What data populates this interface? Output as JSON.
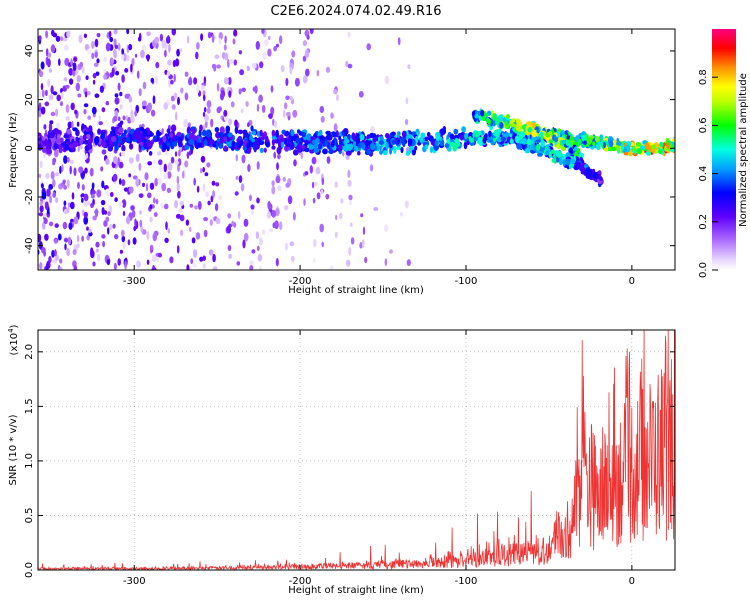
{
  "title": "C2E6.2024.074.02.49.R16",
  "chart_data": [
    {
      "type": "heatmap",
      "xlabel": "Height of straight line (km)",
      "ylabel": "Frequency (Hz)",
      "xlim": [
        -358,
        26
      ],
      "ylim": [
        -50,
        49
      ],
      "xticks": [
        -300,
        -200,
        -100,
        0
      ],
      "xtick_labels": [
        "-300",
        "-200",
        "-100",
        "0"
      ],
      "yticks": [
        -40,
        -20,
        0,
        20,
        40
      ],
      "ytick_labels": [
        "-40",
        "-20",
        "0",
        "20",
        "40"
      ],
      "colorbar": {
        "label": "Normalized spectral amplitude",
        "range": [
          0,
          1
        ],
        "ticks": [
          0,
          0.2,
          0.4,
          0.6,
          0.8
        ],
        "tick_labels": [
          "0.0",
          "0.2",
          "0.4",
          "0.6",
          "0.8"
        ],
        "colormap": "rainbow"
      },
      "ridges": [
        {
          "x": [
            -358,
            -300,
            -200,
            -150,
            -100,
            -50,
            -20,
            0,
            26
          ],
          "y": [
            3,
            4,
            3,
            2,
            4,
            5,
            2,
            0,
            1
          ],
          "amplitude": [
            0.25,
            0.35,
            0.4,
            0.45,
            0.5,
            0.55,
            0.7,
            0.85,
            0.9
          ]
        },
        {
          "x": [
            -95,
            -80,
            -60,
            -40,
            -30
          ],
          "y": [
            13,
            11,
            8,
            2,
            -5
          ],
          "amplitude": [
            0.5,
            0.7,
            0.75,
            0.7,
            0.5
          ]
        },
        {
          "x": [
            -80,
            -55,
            -35,
            -18
          ],
          "y": [
            4,
            0,
            -6,
            -13
          ],
          "amplitude": [
            0.45,
            0.55,
            0.5,
            0.3
          ]
        }
      ]
    },
    {
      "type": "line",
      "xlabel": "Height of straight line (km)",
      "ylabel": "SNR (10 * v/v)",
      "y_multiplier": "(x10",
      "y_multiplier_exp": "4",
      "y_multiplier_close": ")",
      "xlim": [
        -358,
        26
      ],
      "ylim": [
        0,
        2.2
      ],
      "xticks": [
        -300,
        -200,
        -100,
        0
      ],
      "xtick_labels": [
        "-300",
        "-200",
        "-100",
        "0"
      ],
      "yticks": [
        0,
        0.5,
        1.0,
        1.5,
        2.0
      ],
      "ytick_labels": [
        "0.0",
        "0.5",
        "1.0",
        "1.5",
        "2.0"
      ],
      "series": [
        {
          "color": "#ee3333",
          "envelope_x": [
            -358,
            -300,
            -250,
            -200,
            -150,
            -120,
            -100,
            -80,
            -60,
            -50,
            -40,
            -35,
            -30,
            -25,
            -20,
            -15,
            -10,
            0,
            10,
            20,
            26
          ],
          "envelope_y": [
            0.02,
            0.02,
            0.03,
            0.05,
            0.07,
            0.1,
            0.15,
            0.2,
            0.25,
            0.3,
            0.5,
            0.8,
            1.5,
            1.3,
            1.0,
            1.2,
            1.3,
            1.5,
            1.6,
            1.8,
            1.6
          ]
        }
      ]
    }
  ]
}
